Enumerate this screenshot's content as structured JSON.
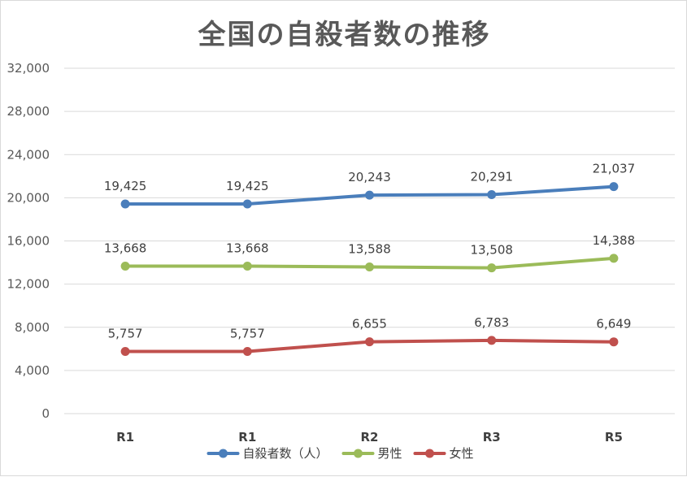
{
  "chart_data": {
    "type": "line",
    "title": "全国の自殺者数の推移",
    "categories": [
      "R1",
      "R1",
      "R2",
      "R3",
      "R5"
    ],
    "ylim": [
      0,
      32000
    ],
    "yticks": [
      "0",
      "4,000",
      "8,000",
      "12,000",
      "16,000",
      "20,000",
      "24,000",
      "28,000",
      "32,000"
    ],
    "grid": true,
    "legend_position": "bottom",
    "series": [
      {
        "name": "自殺者数（人）",
        "color": "#4a7ebb",
        "values": [
          19425,
          19425,
          20243,
          20291,
          21037
        ],
        "labels": [
          "19,425",
          "19,425",
          "20,243",
          "20,291",
          "21,037"
        ]
      },
      {
        "name": "男性",
        "color": "#9bbb59",
        "values": [
          13668,
          13668,
          13588,
          13508,
          14388
        ],
        "labels": [
          "13,668",
          "13,668",
          "13,588",
          "13,508",
          "14,388"
        ]
      },
      {
        "name": "女性",
        "color": "#c0504d",
        "values": [
          5757,
          5757,
          6655,
          6783,
          6649
        ],
        "labels": [
          "5,757",
          "5,757",
          "6,655",
          "6,783",
          "6,649"
        ]
      }
    ]
  }
}
